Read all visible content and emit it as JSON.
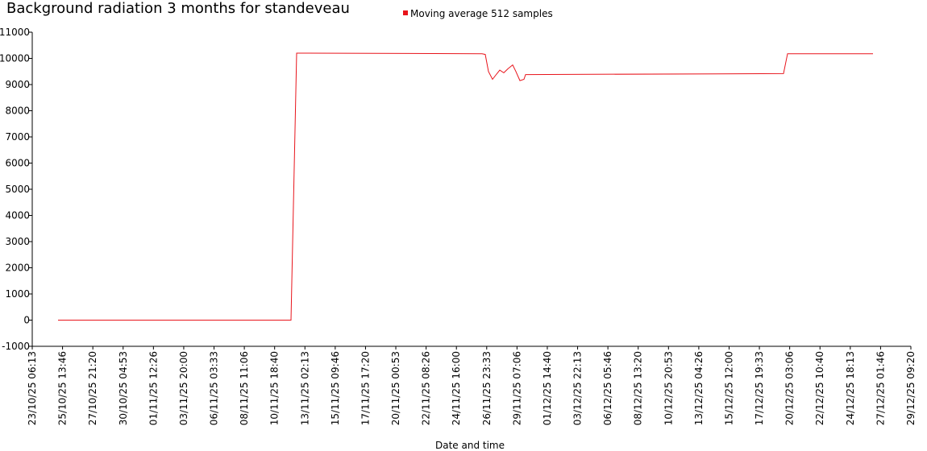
{
  "chart_data": {
    "type": "line",
    "title": "Background radiation 3 months for standeveau",
    "xlabel": "Date and time",
    "x": [
      "25/10/25 05:31",
      "12/11/25 00:43",
      "12/11/25 11:01",
      "26/11/25 15:01",
      "26/11/25 20:55",
      "27/11/25 02:49",
      "27/11/25 10:13",
      "27/11/25 17:37",
      "27/11/25 23:31",
      "28/11/25 06:55",
      "28/11/25 14:19",
      "28/11/25 23:13",
      "29/11/25 05:07",
      "29/11/25 12:31",
      "29/11/25 19:49",
      "29/11/25 22:49",
      "19/12/25 15:49",
      "19/12/25 23:13",
      "26/12/25 11:55"
    ],
    "series": [
      {
        "name": "Moving average 512 samples",
        "color": "#e8141b",
        "values": [
          0,
          0,
          10200,
          10180,
          10150,
          9500,
          9200,
          9400,
          9550,
          9450,
          9600,
          9750,
          9500,
          9150,
          9200,
          9380,
          9420,
          10180,
          10180
        ]
      }
    ],
    "xlim": [
      "23/10/25 06:13",
      "29/12/25 09:20"
    ],
    "xticks": [
      "23/10/25 06:13",
      "25/10/25 13:46",
      "27/10/25 21:20",
      "30/10/25 04:53",
      "01/11/25 12:26",
      "03/11/25 20:00",
      "06/11/25 03:33",
      "08/11/25 11:06",
      "10/11/25 18:40",
      "13/11/25 02:13",
      "15/11/25 09:46",
      "17/11/25 17:20",
      "20/11/25 00:53",
      "22/11/25 08:26",
      "24/11/25 16:00",
      "26/11/25 23:33",
      "29/11/25 07:06",
      "01/12/25 14:40",
      "03/12/25 22:13",
      "06/12/25 05:46",
      "08/12/25 13:20",
      "10/12/25 20:53",
      "13/12/25 04:26",
      "15/12/25 12:00",
      "17/12/25 19:33",
      "20/12/25 03:06",
      "22/12/25 10:40",
      "24/12/25 18:13",
      "27/12/25 01:46",
      "29/12/25 09:20"
    ],
    "ylim": [
      -1000,
      11000
    ],
    "yticks": [
      -1000,
      0,
      1000,
      2000,
      3000,
      4000,
      5000,
      6000,
      7000,
      8000,
      9000,
      10000,
      11000
    ],
    "legend": "top"
  }
}
